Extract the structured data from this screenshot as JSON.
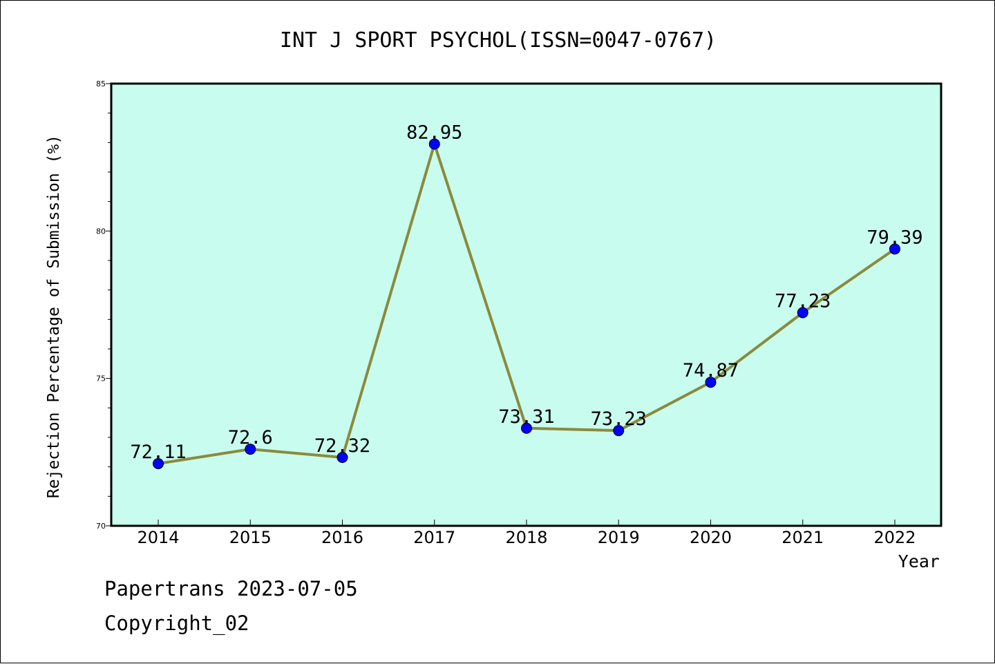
{
  "chart_data": {
    "type": "line",
    "title": "INT J SPORT PSYCHOL(ISSN=0047-0767)",
    "xlabel": "Year",
    "ylabel": "Rejection Percentage of Submission (%)",
    "categories": [
      "2014",
      "2015",
      "2016",
      "2017",
      "2018",
      "2019",
      "2020",
      "2021",
      "2022"
    ],
    "values": [
      72.11,
      72.6,
      72.32,
      82.95,
      73.31,
      73.23,
      74.87,
      77.23,
      79.39
    ],
    "data_labels": [
      "72.11",
      "72.6",
      "72.32",
      "82.95",
      "73.31",
      "73.23",
      "74.87",
      "77.23",
      "79.39"
    ],
    "ylim": [
      70,
      85
    ],
    "y_ticks": [
      70,
      75,
      80,
      85
    ],
    "y_minor_step": 1,
    "grid": false,
    "colors": {
      "plot_background": "#c8fcee",
      "line": "#8b8a3c",
      "marker": "#0000ff"
    }
  },
  "footer": {
    "line1": "Papertrans 2023-07-05",
    "line2": "Copyright_02"
  }
}
